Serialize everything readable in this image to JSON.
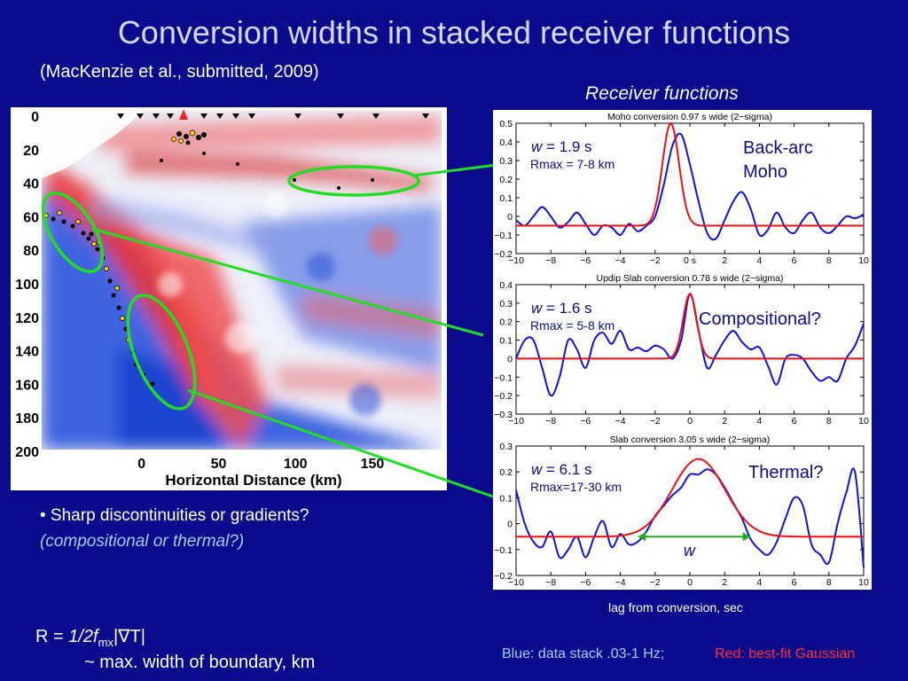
{
  "slide": {
    "title": "Conversion widths in stacked receiver functions",
    "citation": "(MacKenzie et al., submitted, 2009)",
    "rf_heading": "Receiver functions",
    "bullet1": "• Sharp discontinuities or gradients?",
    "bullet2": "(compositional or thermal?)",
    "formula_r": "R = ",
    "formula_rest": "1/2f",
    "formula_sub": "mx",
    "formula_grad": "|∇T|",
    "formula_line2": "~ max. width of boundary, km",
    "lag_label": "lag from conversion, sec",
    "legend_blue": "Blue: data stack .03-1 Hz;",
    "legend_red": "Red: best-fit Gaussian"
  },
  "chart_data": [
    {
      "type": "heatmap",
      "name": "migrated receiver function image",
      "xlabel": "Horizontal Distance (km)",
      "x_ticks": [
        "0",
        "50",
        "100",
        "150"
      ],
      "y_ticks": [
        "0",
        "20",
        "40",
        "60",
        "80",
        "100",
        "120",
        "140",
        "160",
        "180",
        "200"
      ],
      "ylim": [
        0,
        200
      ],
      "xlim": [
        -65,
        195
      ],
      "colors": {
        "positive": "#e23030",
        "negative": "#2850d8",
        "ellipse": "#22dd22"
      }
    },
    {
      "type": "line",
      "title": "Moho conversion 0.97 s wide (2−sigma)",
      "xlim": [
        -10,
        10
      ],
      "ylim": [
        -0.2,
        0.5
      ],
      "x_ticks": [
        "−10",
        "−8",
        "−6",
        "−4",
        "−2",
        "0 s",
        "2",
        "4",
        "6",
        "8",
        "10"
      ],
      "y_ticks": [
        "0.5",
        "0.4",
        "0.3",
        "0.2",
        "0.1",
        "0",
        "−0.1",
        "−0.2"
      ],
      "w_label": "w",
      "w_value": " = 1.9 s",
      "rmax": "Rmax = 7-8 km",
      "annotation": [
        "Back-arc",
        "Moho"
      ],
      "series": [
        {
          "color": "#1010e0",
          "x": [
            -10,
            -9.5,
            -9,
            -8.5,
            -8,
            -7.5,
            -7,
            -6.5,
            -6,
            -5.5,
            -5,
            -4.5,
            -4,
            -3.5,
            -3,
            -2.5,
            -2,
            -1.5,
            -1,
            -0.5,
            0,
            0.5,
            1,
            1.5,
            2,
            2.5,
            3,
            3.5,
            4,
            4.5,
            5,
            5.5,
            6,
            6.5,
            7,
            7.5,
            8,
            8.5,
            9,
            9.5,
            10
          ],
          "y": [
            -0.02,
            -0.05,
            0.0,
            0.05,
            0.0,
            -0.06,
            -0.03,
            0.02,
            -0.04,
            -0.1,
            -0.05,
            -0.06,
            -0.1,
            -0.04,
            -0.08,
            -0.05,
            0.0,
            0.17,
            0.38,
            0.44,
            0.28,
            0.08,
            -0.09,
            -0.12,
            -0.02,
            0.08,
            0.13,
            0.04,
            -0.1,
            -0.07,
            0.02,
            -0.06,
            -0.09,
            -0.02,
            0.02,
            -0.06,
            -0.09,
            -0.05,
            0.0,
            -0.01,
            0.01
          ]
        },
        {
          "color": "#ee1010",
          "type": "gaussian",
          "center": -1.1,
          "amp": 0.5,
          "sigma": 0.48,
          "baseline": -0.05
        }
      ]
    },
    {
      "type": "line",
      "title": "Updip Slab conversion 0.78 s wide (2−sigma)",
      "xlim": [
        -10,
        10
      ],
      "ylim": [
        -0.3,
        0.4
      ],
      "x_ticks": [
        "−10",
        "−8",
        "−6",
        "−4",
        "−2",
        "0",
        "2",
        "4",
        "6",
        "8",
        "10"
      ],
      "y_ticks": [
        "0.4",
        "0.3",
        "0.2",
        "0.1",
        "0",
        "−0.1",
        "−0.2",
        "−0.3"
      ],
      "w_label": "w",
      "w_value": " = 1.6 s",
      "rmax": "Rmax = 5-8 km",
      "annotation": [
        "Compositional?"
      ],
      "series": [
        {
          "color": "#1010e0",
          "x": [
            -10,
            -9.5,
            -9,
            -8.5,
            -8,
            -7.5,
            -7,
            -6.5,
            -6,
            -5.5,
            -5,
            -4.5,
            -4,
            -3.5,
            -3,
            -2.5,
            -2,
            -1.5,
            -1,
            -0.5,
            0,
            0.5,
            1,
            1.5,
            2,
            2.5,
            3,
            3.5,
            4,
            4.5,
            5,
            5.5,
            6,
            6.5,
            7,
            7.5,
            8,
            8.5,
            9,
            9.5,
            10
          ],
          "y": [
            0.0,
            0.1,
            0.1,
            -0.05,
            -0.2,
            -0.1,
            0.1,
            0.05,
            -0.05,
            0.1,
            0.14,
            0.08,
            0.15,
            0.05,
            0.06,
            0.04,
            0.07,
            0.05,
            0.0,
            0.1,
            0.35,
            0.15,
            -0.05,
            0.02,
            0.1,
            0.15,
            0.09,
            0.05,
            0.06,
            -0.04,
            -0.14,
            0.0,
            0.02,
            0.0,
            -0.07,
            -0.12,
            -0.1,
            -0.12,
            0.0,
            0.07,
            0.19
          ]
        },
        {
          "color": "#ee1010",
          "type": "gaussian",
          "center": 0.0,
          "amp": 0.35,
          "sigma": 0.39,
          "baseline": 0.0
        }
      ]
    },
    {
      "type": "line",
      "title": "Slab conversion 3.05 s wide (2−sigma)",
      "xlim": [
        -10,
        10
      ],
      "ylim": [
        -0.2,
        0.3
      ],
      "x_ticks": [
        "−10",
        "−8",
        "−6",
        "−4",
        "−2",
        "0",
        "2",
        "4",
        "6",
        "8",
        "10"
      ],
      "y_ticks": [
        "0.3",
        "0.2",
        "0.1",
        "0",
        "−0.1",
        "−0.2"
      ],
      "w_label": "w",
      "w_value": " = 6.1 s",
      "rmax": "Rmax=17-30 km",
      "annotation": [
        "Thermal?"
      ],
      "arrow_label": "w",
      "arrow_range": [
        -3,
        3.5
      ],
      "arrow_y": -0.05,
      "series": [
        {
          "color": "#1010e0",
          "x": [
            -10,
            -9.5,
            -9,
            -8.5,
            -8,
            -7.5,
            -7,
            -6.5,
            -6,
            -5.5,
            -5,
            -4.5,
            -4,
            -3.5,
            -3,
            -2.5,
            -2,
            -1.5,
            -1,
            -0.5,
            0,
            0.5,
            1,
            1.5,
            2,
            2.5,
            3,
            3.5,
            4,
            4.5,
            5,
            5.5,
            6,
            6.5,
            7,
            7.5,
            8,
            8.5,
            9,
            9.5,
            10
          ],
          "y": [
            0.13,
            0.0,
            -0.07,
            -0.09,
            -0.03,
            -0.13,
            -0.1,
            -0.05,
            -0.13,
            -0.05,
            0.01,
            -0.09,
            -0.04,
            -0.08,
            -0.07,
            -0.03,
            0.03,
            0.07,
            0.11,
            0.14,
            0.19,
            0.19,
            0.21,
            0.19,
            0.14,
            0.08,
            0.02,
            -0.06,
            -0.1,
            -0.12,
            -0.07,
            0.02,
            0.1,
            0.07,
            -0.08,
            -0.12,
            -0.15,
            0.0,
            0.12,
            0.2,
            -0.17
          ]
        },
        {
          "color": "#ee1010",
          "type": "gaussian",
          "center": 0.5,
          "amp": 0.25,
          "sigma": 1.52,
          "baseline": -0.05
        }
      ]
    }
  ]
}
